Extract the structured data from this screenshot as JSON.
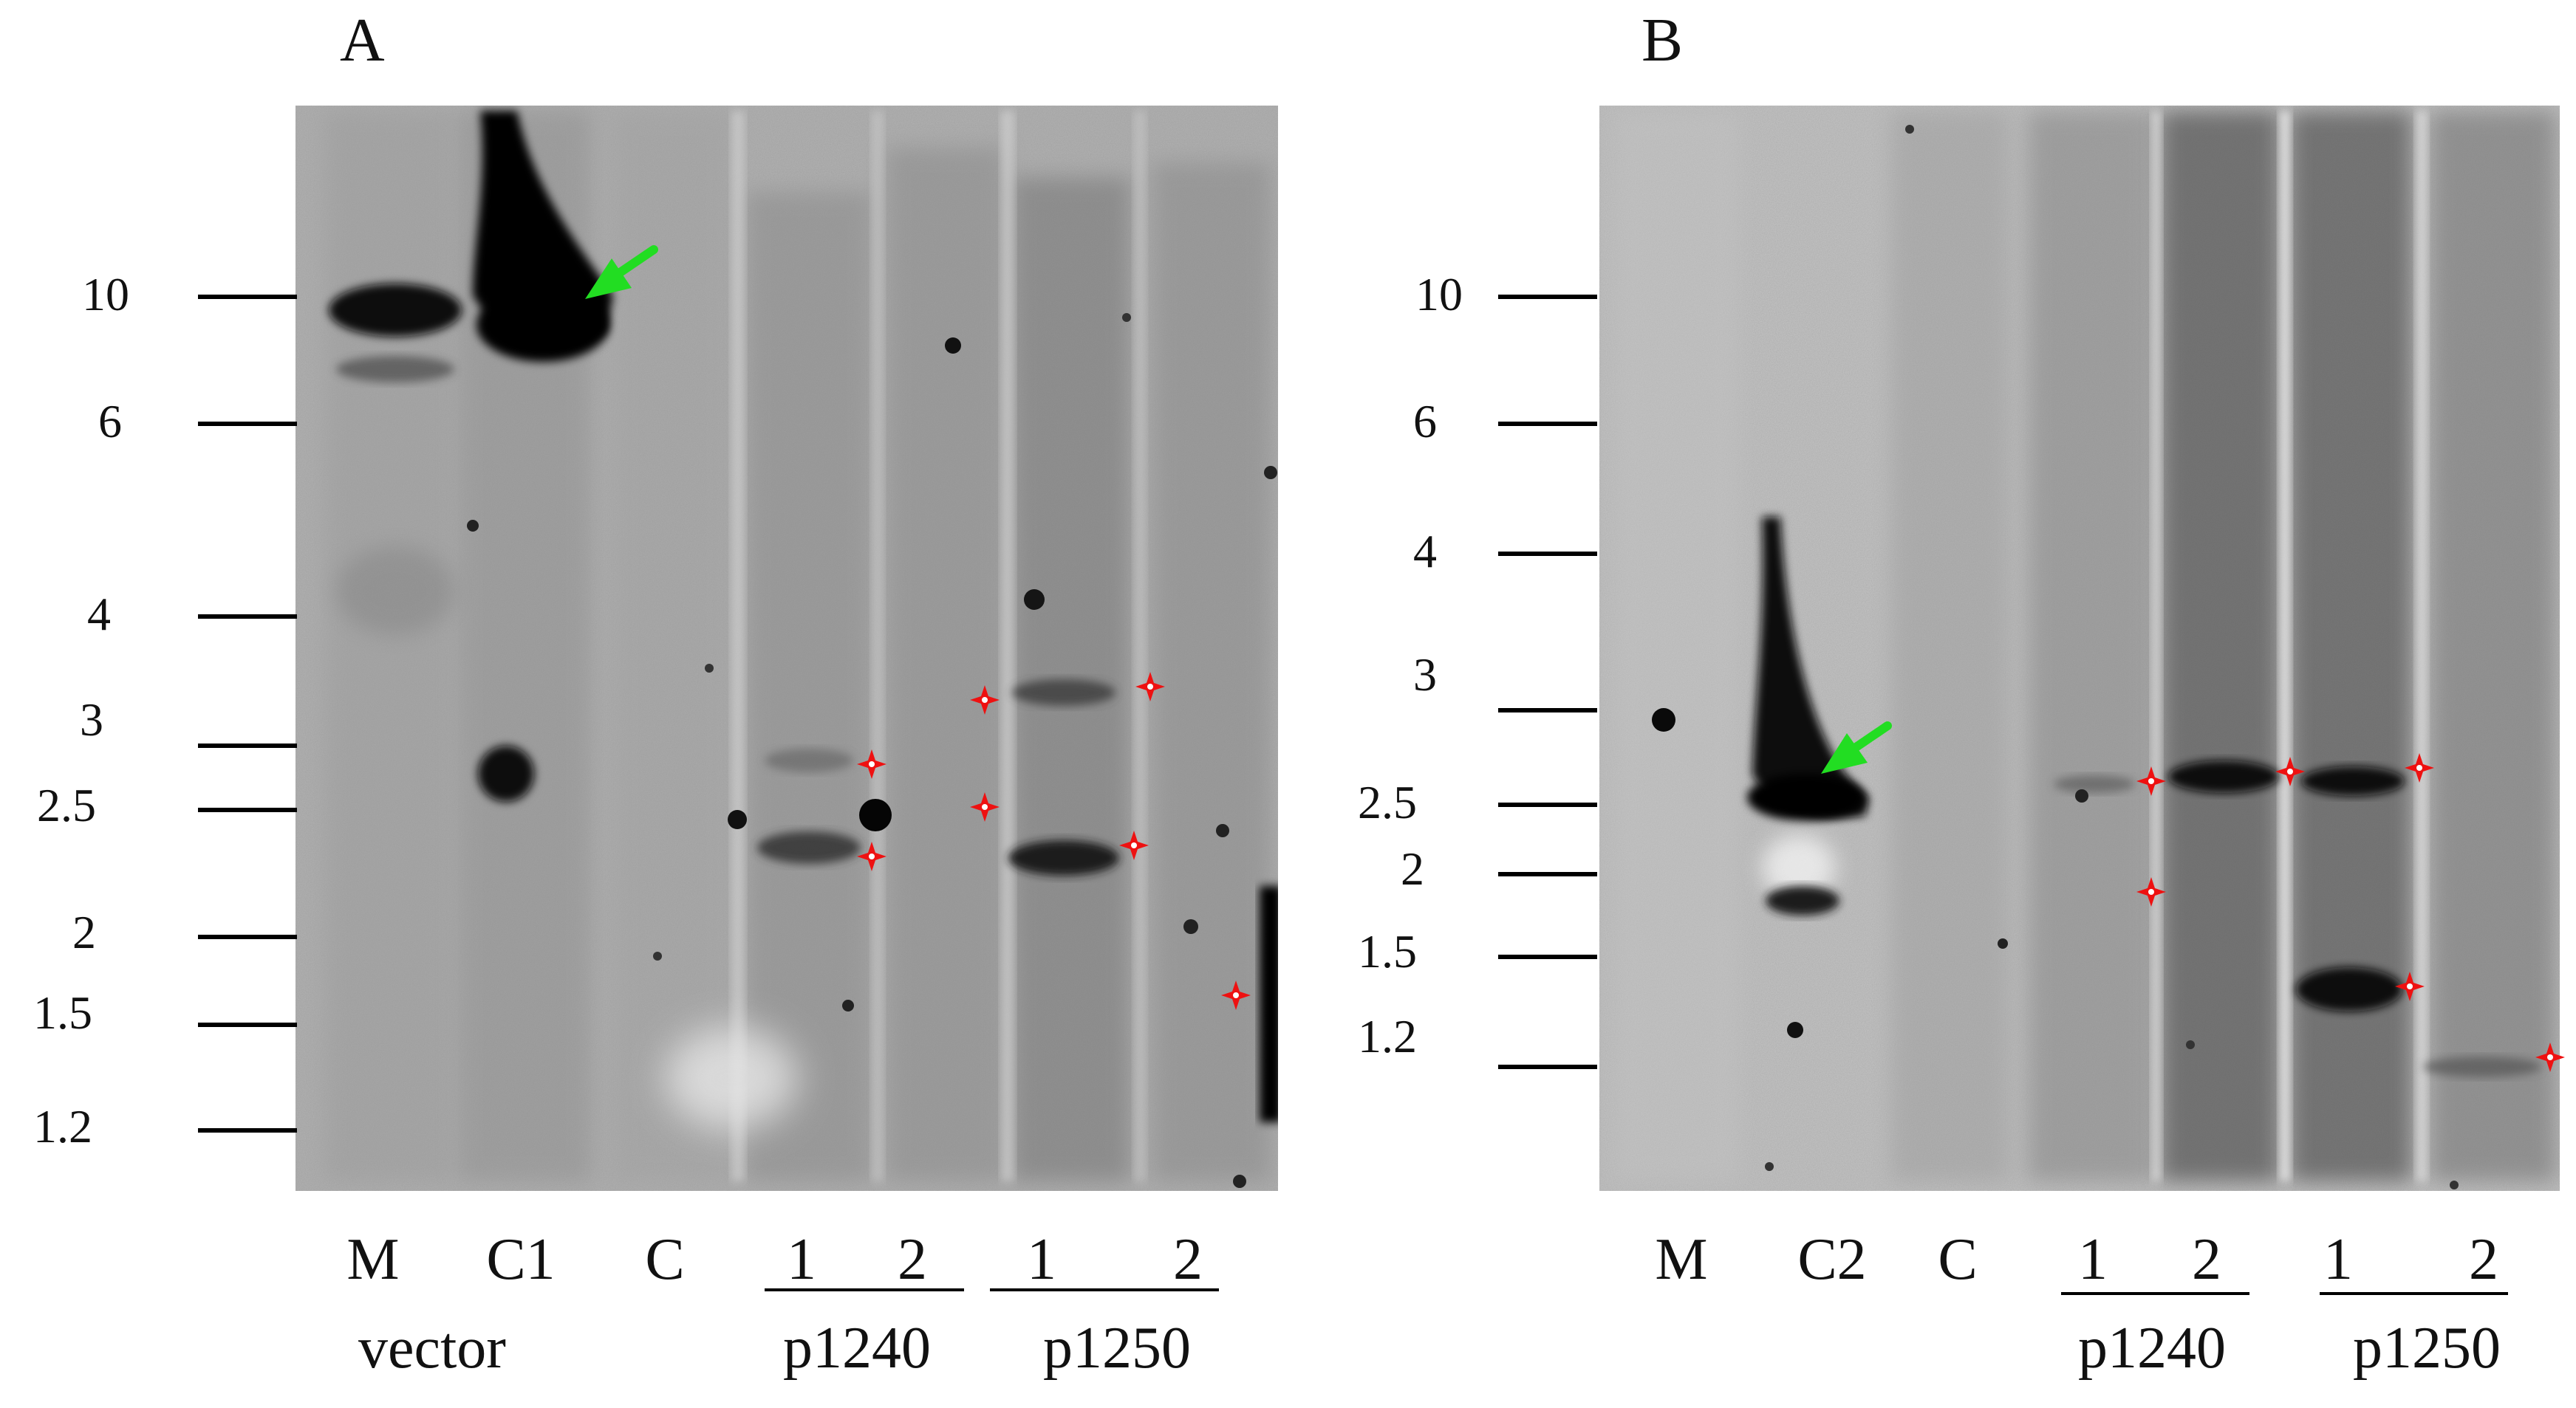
{
  "panels": [
    {
      "id": "A",
      "letter": "A",
      "size_ticks": [
        "10",
        "6",
        "4",
        "3",
        "2.5",
        "2",
        "1.5",
        "1.2"
      ],
      "lane_labels": [
        "M",
        "C1",
        "C",
        "1",
        "2",
        "1",
        "2"
      ],
      "bottom_labels": [
        "vector",
        "p1240",
        "p1250"
      ],
      "arrow_color": "#22dd22",
      "marker_color": "#ee1111",
      "marker_count": 9
    },
    {
      "id": "B",
      "letter": "B",
      "size_ticks": [
        "10",
        "6",
        "4",
        "3",
        "2.5",
        "2",
        "1.5",
        "1.2"
      ],
      "lane_labels": [
        "M",
        "C2",
        "C",
        "1",
        "2",
        "1",
        "2"
      ],
      "bottom_labels": [
        "p1240",
        "p1250"
      ],
      "arrow_color": "#22dd22",
      "marker_color": "#ee1111",
      "marker_count": 8
    }
  ]
}
